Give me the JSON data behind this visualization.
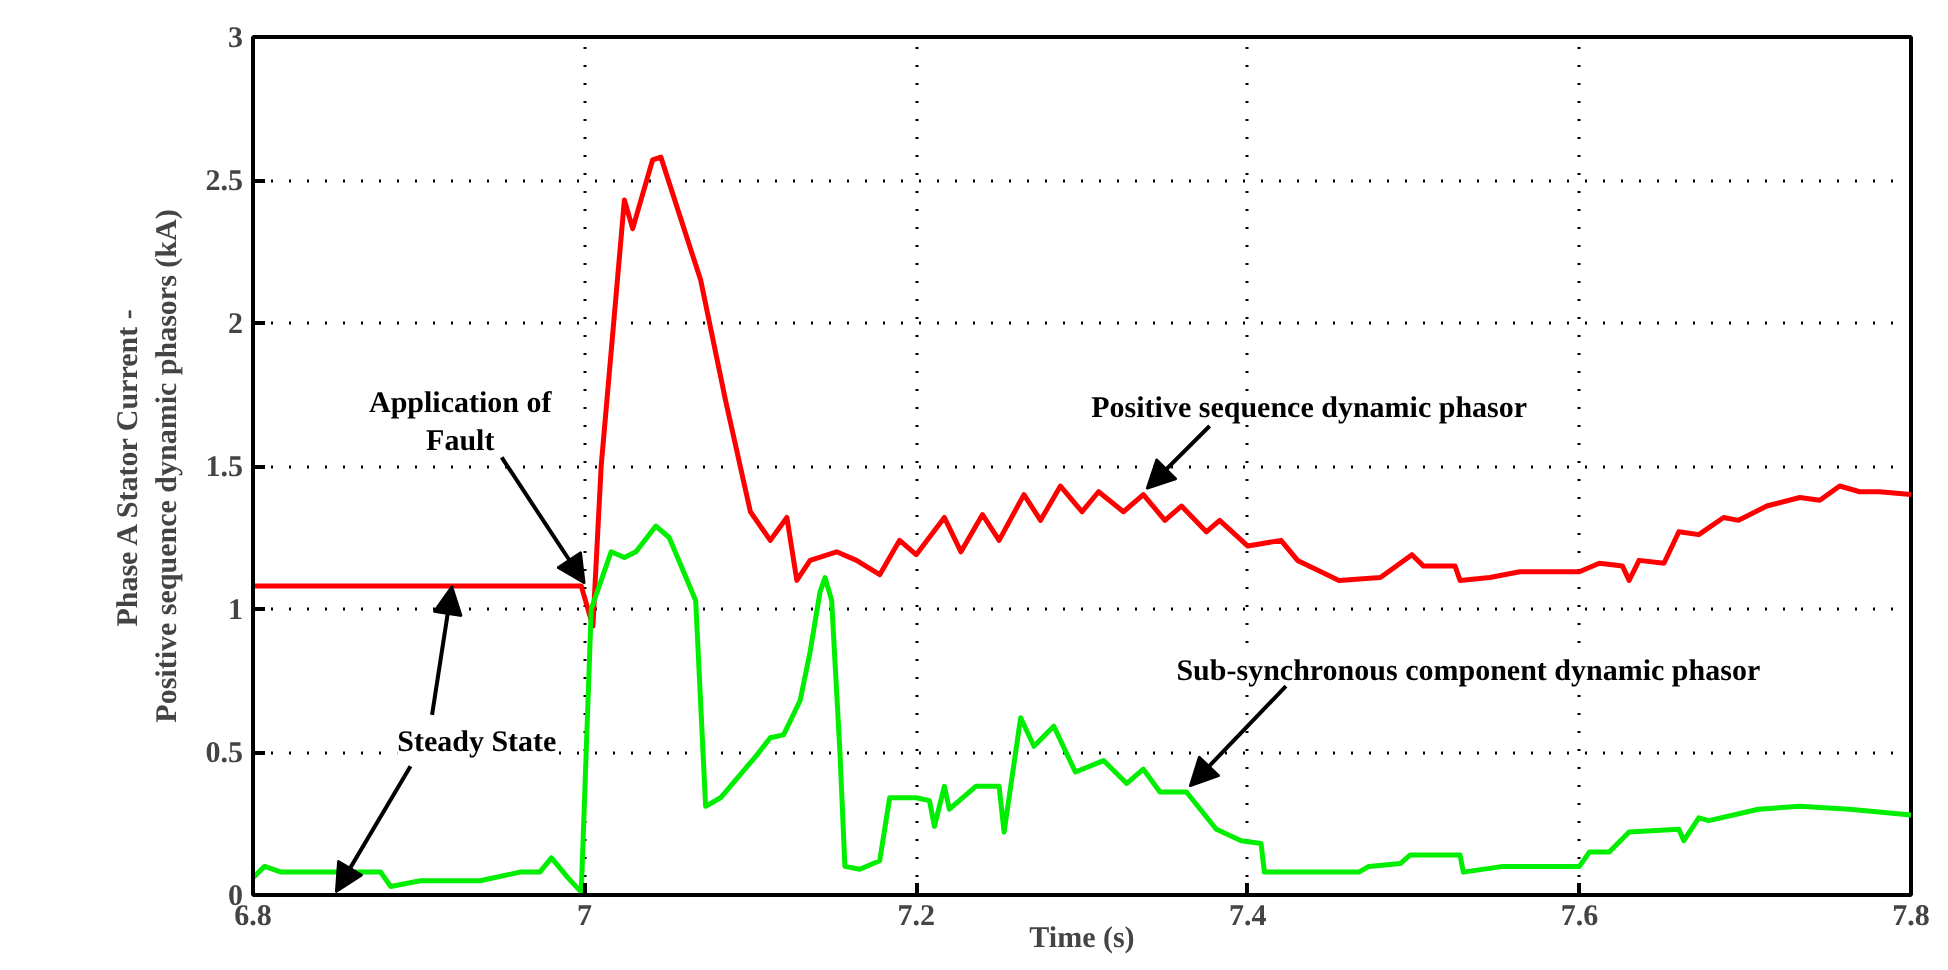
{
  "chart_data": {
    "type": "line",
    "xlabel": "Time (s)",
    "ylabel": "Phase A Stator Current - Positive sequence dynamic phasors (kA)",
    "xlim": [
      6.8,
      7.8
    ],
    "ylim": [
      0,
      3
    ],
    "xticks": [
      6.8,
      7,
      7.2,
      7.4,
      7.6,
      7.8
    ],
    "yticks": [
      0,
      0.5,
      1,
      1.5,
      2,
      2.5,
      3
    ],
    "grid": true,
    "line_style": "solid",
    "marker": "none",
    "series": [
      {
        "name": "Positive sequence dynamic phasor",
        "color": "#ff0000",
        "x": [
          6.8,
          6.998,
          7.005,
          7.01,
          7.024,
          7.029,
          7.041,
          7.046,
          7.07,
          7.085,
          7.1,
          7.112,
          7.122,
          7.128,
          7.136,
          7.152,
          7.164,
          7.178,
          7.19,
          7.2,
          7.217,
          7.227,
          7.24,
          7.25,
          7.265,
          7.275,
          7.287,
          7.3,
          7.31,
          7.325,
          7.337,
          7.35,
          7.36,
          7.375,
          7.383,
          7.4,
          7.42,
          7.43,
          7.455,
          7.48,
          7.499,
          7.506,
          7.525,
          7.528,
          7.546,
          7.564,
          7.6,
          7.612,
          7.626,
          7.63,
          7.636,
          7.651,
          7.66,
          7.672,
          7.687,
          7.696,
          7.713,
          7.733,
          7.745,
          7.757,
          7.769,
          7.781,
          7.8
        ],
        "values": [
          1.08,
          1.08,
          0.94,
          1.5,
          2.43,
          2.33,
          2.57,
          2.58,
          2.15,
          1.73,
          1.34,
          1.24,
          1.32,
          1.1,
          1.17,
          1.2,
          1.17,
          1.12,
          1.24,
          1.19,
          1.32,
          1.2,
          1.33,
          1.24,
          1.4,
          1.31,
          1.43,
          1.34,
          1.41,
          1.34,
          1.4,
          1.31,
          1.36,
          1.27,
          1.31,
          1.22,
          1.24,
          1.17,
          1.1,
          1.11,
          1.19,
          1.15,
          1.15,
          1.1,
          1.11,
          1.13,
          1.13,
          1.16,
          1.15,
          1.1,
          1.17,
          1.16,
          1.27,
          1.26,
          1.32,
          1.31,
          1.36,
          1.39,
          1.38,
          1.43,
          1.41,
          1.41,
          1.4
        ]
      },
      {
        "name": "Sub-synchronous component dynamic phasor",
        "color": "#00ee00",
        "x": [
          6.8,
          6.807,
          6.817,
          6.877,
          6.883,
          6.901,
          6.937,
          6.961,
          6.973,
          6.98,
          6.99,
          6.998,
          7.004,
          7.016,
          7.024,
          7.031,
          7.043,
          7.051,
          7.067,
          7.073,
          7.082,
          7.104,
          7.112,
          7.12,
          7.13,
          7.136,
          7.142,
          7.145,
          7.149,
          7.154,
          7.157,
          7.166,
          7.178,
          7.184,
          7.2,
          7.208,
          7.211,
          7.217,
          7.22,
          7.236,
          7.25,
          7.253,
          7.263,
          7.271,
          7.283,
          7.296,
          7.313,
          7.327,
          7.337,
          7.347,
          7.363,
          7.381,
          7.396,
          7.408,
          7.41,
          7.431,
          7.467,
          7.473,
          7.492,
          7.498,
          7.528,
          7.53,
          7.554,
          7.6,
          7.606,
          7.618,
          7.63,
          7.66,
          7.663,
          7.672,
          7.678,
          7.708,
          7.733,
          7.763,
          7.8
        ],
        "values": [
          0.06,
          0.1,
          0.08,
          0.08,
          0.03,
          0.05,
          0.05,
          0.08,
          0.08,
          0.13,
          0.06,
          0.01,
          1.0,
          1.2,
          1.18,
          1.2,
          1.29,
          1.25,
          1.03,
          0.31,
          0.34,
          0.49,
          0.55,
          0.56,
          0.68,
          0.85,
          1.06,
          1.11,
          1.03,
          0.5,
          0.1,
          0.09,
          0.12,
          0.34,
          0.34,
          0.33,
          0.24,
          0.38,
          0.3,
          0.38,
          0.38,
          0.22,
          0.62,
          0.52,
          0.59,
          0.43,
          0.47,
          0.39,
          0.44,
          0.36,
          0.36,
          0.23,
          0.19,
          0.18,
          0.08,
          0.08,
          0.08,
          0.1,
          0.11,
          0.14,
          0.14,
          0.08,
          0.1,
          0.1,
          0.15,
          0.15,
          0.22,
          0.23,
          0.19,
          0.27,
          0.26,
          0.3,
          0.31,
          0.3,
          0.28
        ]
      }
    ],
    "annotations": [
      {
        "text": "Application of Fault",
        "x": 7.0,
        "y": 1.08
      },
      {
        "text": "Steady State",
        "x": 6.92,
        "y": 1.08
      }
    ]
  }
}
